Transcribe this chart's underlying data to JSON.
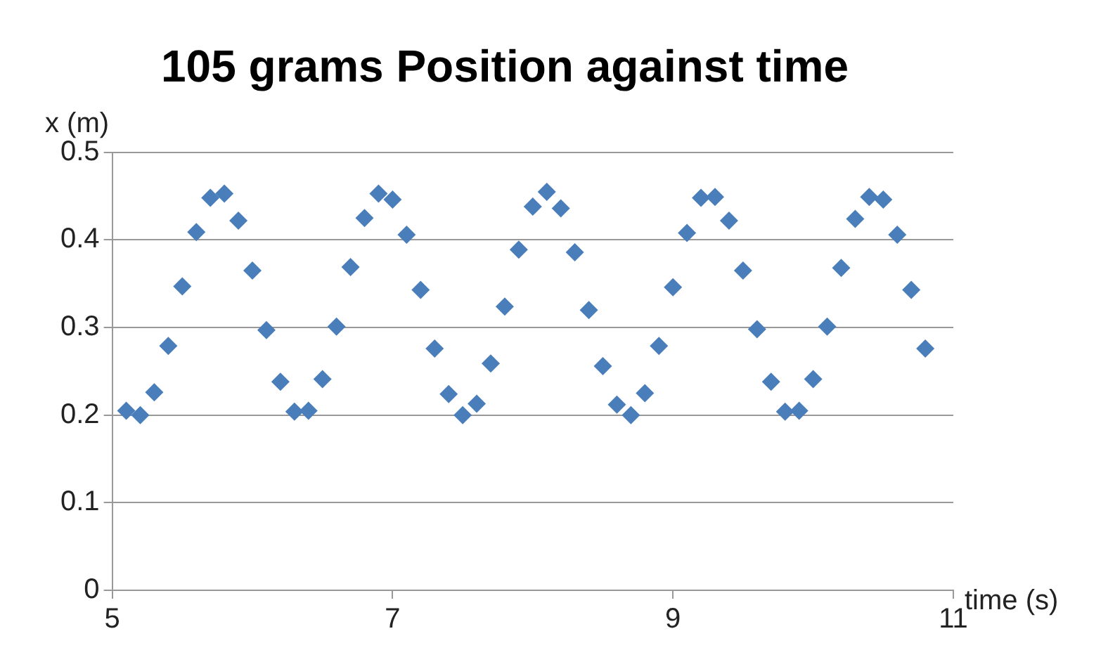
{
  "chart_data": {
    "type": "scatter",
    "title": "105 grams Position against time",
    "xlabel": "time (s)",
    "ylabel": "x (m)",
    "x": [
      5.1,
      5.2,
      5.3,
      5.4,
      5.5,
      5.6,
      5.7,
      5.8,
      5.9,
      6.0,
      6.1,
      6.2,
      6.3,
      6.4,
      6.5,
      6.6,
      6.7,
      6.8,
      6.9,
      7.0,
      7.1,
      7.2,
      7.3,
      7.4,
      7.5,
      7.6,
      7.7,
      7.8,
      7.9,
      8.0,
      8.1,
      8.2,
      8.3,
      8.4,
      8.5,
      8.6,
      8.7,
      8.8,
      8.9,
      9.0,
      9.1,
      9.2,
      9.3,
      9.4,
      9.5,
      9.6,
      9.7,
      9.8,
      9.9,
      10.0,
      10.1,
      10.2,
      10.3,
      10.4,
      10.5,
      10.6,
      10.7,
      10.8
    ],
    "series": [
      {
        "color": "#4a7ebb",
        "values": [
          0.205,
          0.2,
          0.226,
          0.279,
          0.347,
          0.409,
          0.448,
          0.453,
          0.422,
          0.365,
          0.297,
          0.238,
          0.204,
          0.205,
          0.241,
          0.301,
          0.369,
          0.425,
          0.453,
          0.446,
          0.406,
          0.343,
          0.276,
          0.224,
          0.2,
          0.213,
          0.259,
          0.324,
          0.389,
          0.438,
          0.455,
          0.436,
          0.386,
          0.32,
          0.256,
          0.212,
          0.2,
          0.225,
          0.279,
          0.346,
          0.408,
          0.448,
          0.449,
          0.422,
          0.365,
          0.298,
          0.238,
          0.204,
          0.205,
          0.241,
          0.301,
          0.368,
          0.424,
          0.449,
          0.446,
          0.406,
          0.343,
          0.276
        ]
      }
    ],
    "xlim": [
      5,
      11
    ],
    "xticks": [
      5,
      7,
      9,
      11
    ],
    "ylim": [
      0,
      0.5
    ],
    "yticks": [
      0,
      0.1,
      0.2,
      0.3,
      0.4,
      0.5
    ],
    "grid": "y",
    "marker": "diamond",
    "legend": false
  }
}
